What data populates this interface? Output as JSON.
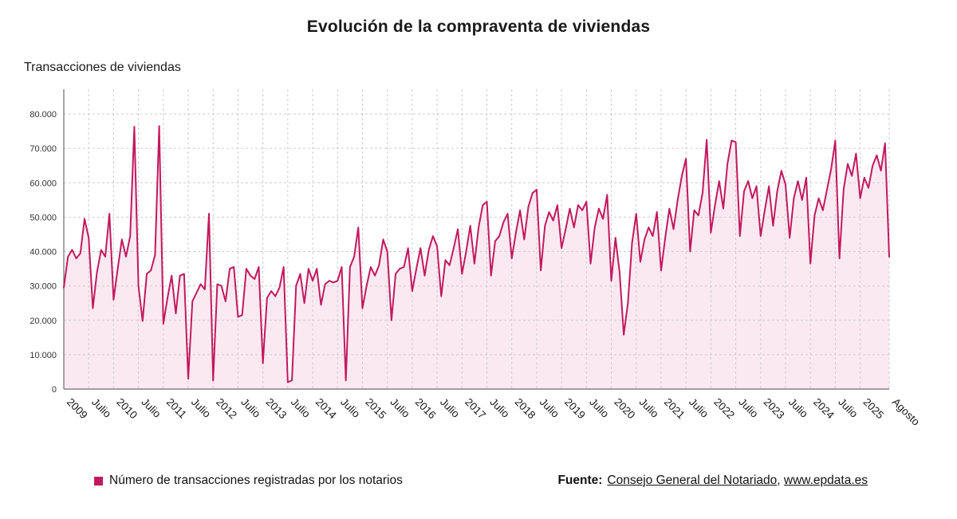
{
  "title": "Evolución de la compraventa de viviendas",
  "axis_title": "Transacciones de viviendas",
  "legend": {
    "label": "Número de transacciones registradas por los notarios"
  },
  "source": {
    "prefix": "Fuente:",
    "link1": "Consejo General del Notariado",
    "separator": ", ",
    "link2": "www.epdata.es"
  },
  "chart_data": {
    "type": "area",
    "title": "Evolución de la compraventa de viviendas",
    "ylabel": "Transacciones de viviendas",
    "ylim": [
      0,
      80000
    ],
    "grid": "dashed",
    "legend_position": "bottom",
    "x_frequency": "monthly",
    "x_start": "2009-01",
    "x_end": "2025-08",
    "colors": {
      "line": "#c1195f",
      "area_fill": "#fbe9f1"
    },
    "y_ticks": [
      {
        "value": 0,
        "label": "0"
      },
      {
        "value": 10000,
        "label": "10.000"
      },
      {
        "value": 20000,
        "label": "20.000"
      },
      {
        "value": 30000,
        "label": "30.000"
      },
      {
        "value": 40000,
        "label": "40.000"
      },
      {
        "value": 50000,
        "label": "50.000"
      },
      {
        "value": 60000,
        "label": "60.000"
      },
      {
        "value": 70000,
        "label": "70.000"
      },
      {
        "value": 80000,
        "label": "80.000"
      }
    ],
    "x_ticks": [
      {
        "label": "2009",
        "month_index": 0
      },
      {
        "label": "Julio",
        "month_index": 6
      },
      {
        "label": "2010",
        "month_index": 12
      },
      {
        "label": "Julio",
        "month_index": 18
      },
      {
        "label": "2011",
        "month_index": 24
      },
      {
        "label": "Julio",
        "month_index": 30
      },
      {
        "label": "2012",
        "month_index": 36
      },
      {
        "label": "Julio",
        "month_index": 42
      },
      {
        "label": "2013",
        "month_index": 48
      },
      {
        "label": "Julio",
        "month_index": 54
      },
      {
        "label": "2014",
        "month_index": 60
      },
      {
        "label": "Julio",
        "month_index": 66
      },
      {
        "label": "2015",
        "month_index": 72
      },
      {
        "label": "Julio",
        "month_index": 78
      },
      {
        "label": "2016",
        "month_index": 84
      },
      {
        "label": "Julio",
        "month_index": 90
      },
      {
        "label": "2017",
        "month_index": 96
      },
      {
        "label": "Julio",
        "month_index": 102
      },
      {
        "label": "2018",
        "month_index": 108
      },
      {
        "label": "Julio",
        "month_index": 114
      },
      {
        "label": "2019",
        "month_index": 120
      },
      {
        "label": "Julio",
        "month_index": 126
      },
      {
        "label": "2020",
        "month_index": 132
      },
      {
        "label": "Julio",
        "month_index": 138
      },
      {
        "label": "2021",
        "month_index": 144
      },
      {
        "label": "Julio",
        "month_index": 150
      },
      {
        "label": "2022",
        "month_index": 156
      },
      {
        "label": "Julio",
        "month_index": 162
      },
      {
        "label": "2023",
        "month_index": 168
      },
      {
        "label": "Julio",
        "month_index": 174
      },
      {
        "label": "2024",
        "month_index": 180
      },
      {
        "label": "Julio",
        "month_index": 186
      },
      {
        "label": "2025",
        "month_index": 192
      },
      {
        "label": "Agosto",
        "month_index": 199
      }
    ],
    "series": [
      {
        "name": "Número de transacciones registradas por los notarios",
        "monthly_values": [
          29500,
          38500,
          40500,
          38000,
          39500,
          49500,
          44000,
          23500,
          34000,
          40500,
          38500,
          51000,
          26000,
          35000,
          43500,
          38500,
          44500,
          76300,
          30000,
          19800,
          33500,
          34500,
          39000,
          76500,
          19000,
          26500,
          33000,
          22000,
          33000,
          33500,
          3000,
          25500,
          28000,
          30500,
          29000,
          51000,
          2500,
          30500,
          30000,
          25500,
          35000,
          35500,
          21000,
          21500,
          35000,
          33000,
          32000,
          35500,
          7500,
          26500,
          28500,
          27000,
          29500,
          35500,
          2000,
          2500,
          30000,
          33500,
          25000,
          35000,
          31500,
          35000,
          24500,
          30500,
          31500,
          31000,
          31500,
          35500,
          2500,
          35500,
          38500,
          47000,
          23500,
          30000,
          35500,
          33000,
          36000,
          43500,
          40000,
          20000,
          33500,
          35000,
          35500,
          41000,
          28500,
          35000,
          41000,
          33000,
          40500,
          44500,
          41500,
          27000,
          37500,
          36000,
          41000,
          46500,
          33500,
          40000,
          47500,
          36500,
          47000,
          53500,
          54500,
          33000,
          43000,
          44500,
          48500,
          51000,
          38000,
          45500,
          52000,
          43500,
          53000,
          57000,
          58000,
          34500,
          47500,
          51500,
          49000,
          53500,
          41000,
          46500,
          52500,
          47000,
          53500,
          52000,
          54500,
          36500,
          47000,
          52500,
          49500,
          56500,
          31500,
          44000,
          34000,
          15800,
          25000,
          42500,
          51000,
          37000,
          43500,
          47000,
          44500,
          51500,
          34500,
          44000,
          52500,
          46500,
          55000,
          62000,
          67000,
          40000,
          52000,
          50500,
          57000,
          72500,
          45500,
          53500,
          60500,
          52500,
          65500,
          72300,
          71800,
          44500,
          57500,
          60500,
          55500,
          59000,
          44500,
          52000,
          59000,
          47500,
          57500,
          63500,
          59500,
          44000,
          55500,
          60500,
          55000,
          61500,
          36500,
          50500,
          55500,
          52000,
          58000,
          64000,
          72300,
          38000,
          58000,
          65500,
          62000,
          68500,
          55500,
          61500,
          58500,
          65000,
          68000,
          63500,
          71500,
          38500
        ]
      }
    ]
  }
}
